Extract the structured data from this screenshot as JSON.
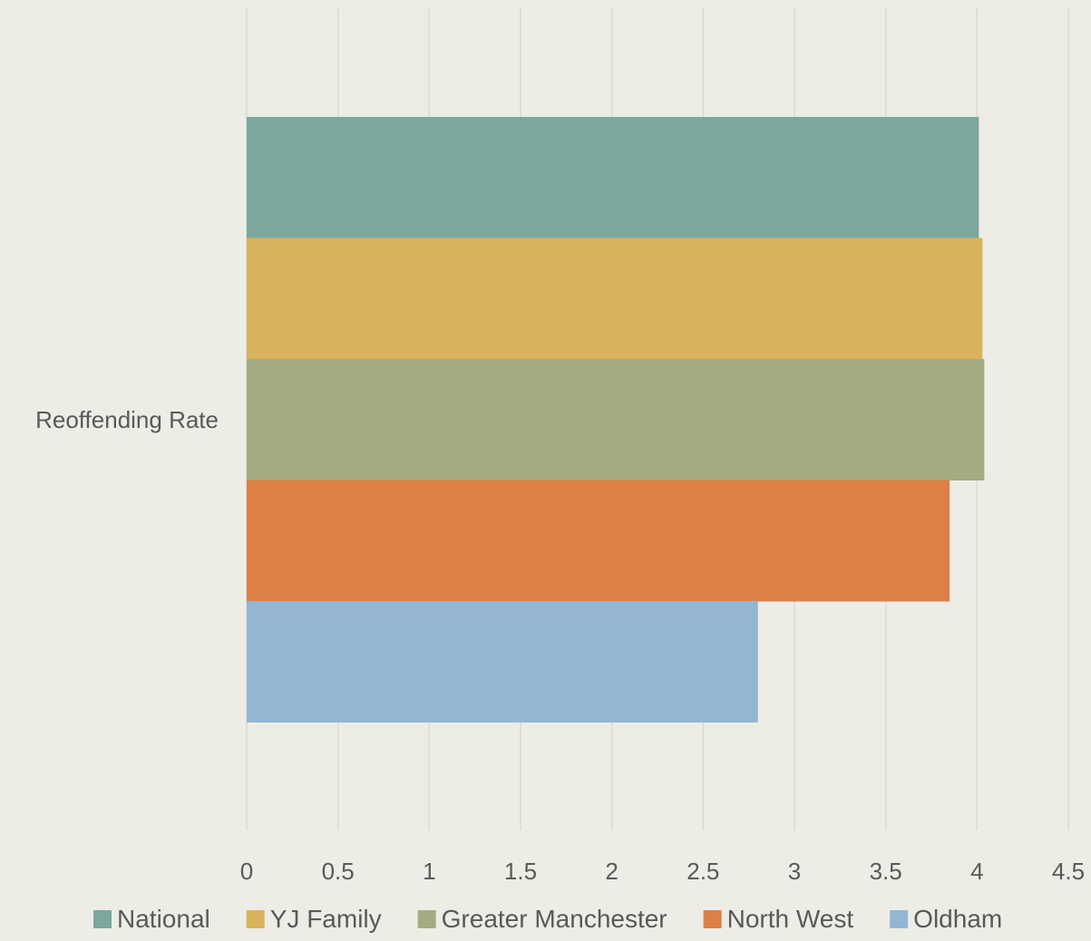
{
  "chart_data": {
    "type": "bar",
    "orientation": "horizontal",
    "categories": [
      "Reoffending Rate"
    ],
    "series": [
      {
        "name": "National",
        "values": [
          4.01
        ],
        "color": "#7BA79D"
      },
      {
        "name": "YJ Family",
        "values": [
          4.03
        ],
        "color": "#D8B25C"
      },
      {
        "name": "Greater Manchester",
        "values": [
          4.04
        ],
        "color": "#A5AB81"
      },
      {
        "name": "North West",
        "values": [
          3.85
        ],
        "color": "#DD8047"
      },
      {
        "name": "Oldham",
        "values": [
          2.8
        ],
        "color": "#94B6D2"
      }
    ],
    "xlim": [
      0,
      4.5
    ],
    "x_ticks": [
      "0",
      "0.5",
      "1",
      "1.5",
      "2",
      "2.5",
      "3",
      "3.5",
      "4",
      "4.5"
    ],
    "x_tick_values": [
      0,
      0.5,
      1,
      1.5,
      2,
      2.5,
      3,
      3.5,
      4,
      4.5
    ],
    "grid": true,
    "legend_position": "bottom",
    "title": "",
    "xlabel": "",
    "ylabel": ""
  },
  "colors": {
    "background": "#EDEDE6",
    "gridline": "#D9D9D9",
    "text": "#595959"
  }
}
